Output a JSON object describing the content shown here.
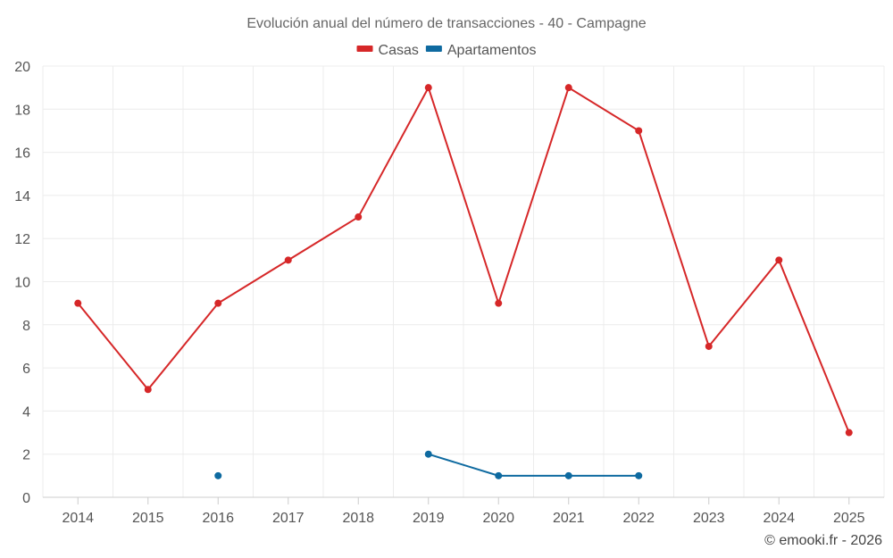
{
  "chart_data": {
    "type": "line",
    "title": "Evolución anual del número de transacciones - 40 - Campagne",
    "categories": [
      "2014",
      "2015",
      "2016",
      "2017",
      "2018",
      "2019",
      "2020",
      "2021",
      "2022",
      "2023",
      "2024",
      "2025"
    ],
    "ylim": [
      0,
      20
    ],
    "yticks": [
      0,
      2,
      4,
      6,
      8,
      10,
      12,
      14,
      16,
      18,
      20
    ],
    "grid": true,
    "legend_position": "top-center",
    "series": [
      {
        "name": "Casas",
        "color": "#d62728",
        "values": [
          9,
          5,
          9,
          11,
          13,
          19,
          9,
          19,
          17,
          7,
          11,
          3
        ]
      },
      {
        "name": "Apartamentos",
        "color": "#0e6aa0",
        "values": [
          null,
          null,
          1,
          null,
          null,
          2,
          1,
          1,
          1,
          null,
          null,
          null
        ]
      }
    ],
    "xlabel": "",
    "ylabel": ""
  },
  "credit": "© emooki.fr - 2026"
}
